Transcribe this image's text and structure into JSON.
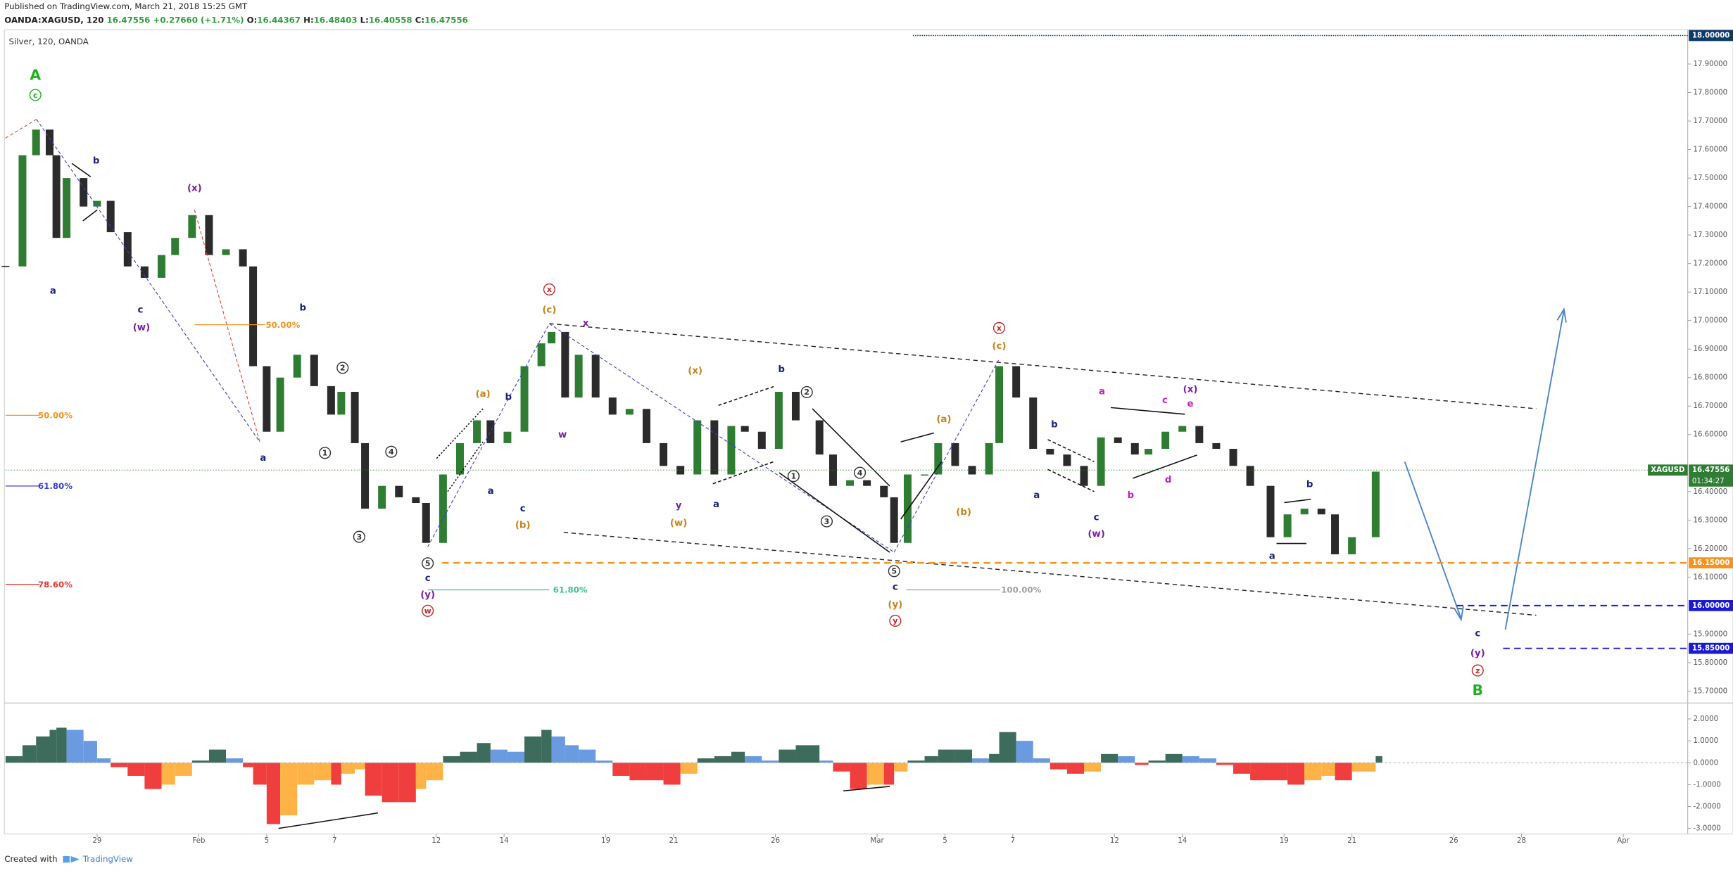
{
  "header": {
    "published": "Published on TradingView.com, March 21, 2018 15:25 GMT",
    "symbol": "OANDA:XAGUSD, 120",
    "last": "16.47556",
    "change": "+0.27660 (+1.71%)",
    "ohlc": [
      {
        "label": "O:",
        "value": "16.44367"
      },
      {
        "label": "H:",
        "value": "16.48403"
      },
      {
        "label": "L:",
        "value": "16.40558"
      },
      {
        "label": "C:",
        "value": "16.47556"
      }
    ]
  },
  "chart_data": [
    {
      "type": "candlestick",
      "title": "Silver, 120, OANDA",
      "color_up": "#2e7d32",
      "color_down": "#2b2b2b",
      "x": [
        -2.7,
        -2.2,
        -1.8,
        -1.4,
        -1.2,
        -0.9,
        -0.4,
        0,
        0.4,
        0.9,
        1.4,
        1.9,
        2.3,
        2.8,
        3.3,
        3.8,
        4.3,
        4.6,
        5,
        5.4,
        5.9,
        6.4,
        6.9,
        7.2,
        7.6,
        7.9,
        8.4,
        8.9,
        9.4,
        9.7,
        10.2,
        10.7,
        11.2,
        11.6,
        12.1,
        12.6,
        13.1,
        13.4,
        13.8,
        14.2,
        14.7,
        15.2,
        15.7,
        16.2,
        16.7,
        17.2,
        17.7,
        18.2,
        18.7,
        19.1,
        19.6,
        20.1,
        20.6,
        21.3,
        21.7,
        22.2,
        22.7,
        23.2,
        23.5,
        23.9,
        24.4,
        24.8,
        25.3,
        25.8,
        26.3,
        26.6,
        27.1,
        27.6,
        28.1,
        28.6,
        29.1,
        29.6,
        30.1,
        30.6,
        31,
        31.5,
        32,
        32.5,
        33,
        33.5,
        34,
        34.6,
        35.1,
        35.6,
        36.1,
        36.5,
        37,
        37.7
      ],
      "values": [
        17.19,
        17.58,
        17.67,
        17.58,
        17.29,
        17.5,
        17.4,
        17.42,
        17.31,
        17.19,
        17.15,
        17.23,
        17.29,
        17.37,
        17.23,
        17.25,
        17.19,
        16.84,
        16.61,
        16.8,
        16.88,
        16.77,
        16.67,
        16.75,
        16.57,
        16.34,
        16.42,
        16.38,
        16.36,
        16.22,
        16.46,
        16.57,
        16.65,
        16.57,
        16.61,
        16.84,
        16.92,
        16.96,
        16.73,
        16.88,
        16.73,
        16.67,
        16.69,
        16.57,
        16.49,
        16.46,
        16.65,
        16.46,
        16.63,
        16.61,
        16.55,
        16.75,
        16.65,
        16.53,
        16.42,
        16.44,
        16.42,
        16.38,
        16.22,
        16.46,
        16.46,
        16.57,
        16.49,
        16.46,
        16.57,
        16.84,
        16.73,
        16.55,
        16.53,
        16.49,
        16.42,
        16.59,
        16.57,
        16.53,
        16.55,
        16.61,
        16.63,
        16.57,
        16.55,
        16.49,
        16.42,
        16.24,
        16.32,
        16.34,
        16.32,
        16.18,
        16.24,
        16.47
      ],
      "xlim": [
        -2.7,
        46.9
      ],
      "xticks": [
        {
          "value": 0,
          "label": "29"
        },
        {
          "value": 3,
          "label": "Feb"
        },
        {
          "value": 5,
          "label": "5"
        },
        {
          "value": 7,
          "label": "7"
        },
        {
          "value": 10,
          "label": "12"
        },
        {
          "value": 12,
          "label": "14"
        },
        {
          "value": 15,
          "label": "19"
        },
        {
          "value": 17,
          "label": "21"
        },
        {
          "value": 20,
          "label": "26"
        },
        {
          "value": 23,
          "label": "Mar"
        },
        {
          "value": 25,
          "label": "5"
        },
        {
          "value": 27,
          "label": "7"
        },
        {
          "value": 30,
          "label": "12"
        },
        {
          "value": 32,
          "label": "14"
        },
        {
          "value": 35,
          "label": "19"
        },
        {
          "value": 37,
          "label": "21"
        },
        {
          "value": 40,
          "label": "26"
        },
        {
          "value": 42,
          "label": "28"
        },
        {
          "value": 45,
          "label": "Apr"
        }
      ],
      "ylim": [
        15.66,
        18.02
      ],
      "yticks": [
        {
          "value": 15.7,
          "label": "15.70000"
        },
        {
          "value": 15.8,
          "label": "15.80000"
        },
        {
          "value": 15.9,
          "label": "15.90000"
        },
        {
          "value": 16.1,
          "label": "16.10000"
        },
        {
          "value": 16.2,
          "label": "16.20000"
        },
        {
          "value": 16.3,
          "label": "16.30000"
        },
        {
          "value": 16.4,
          "label": "16.40000"
        },
        {
          "value": 16.6,
          "label": "16.60000"
        },
        {
          "value": 16.7,
          "label": "16.70000"
        },
        {
          "value": 16.8,
          "label": "16.80000"
        },
        {
          "value": 16.9,
          "label": "16.90000"
        },
        {
          "value": 17,
          "label": "17.00000"
        },
        {
          "value": 17.1,
          "label": "17.10000"
        },
        {
          "value": 17.2,
          "label": "17.20000"
        },
        {
          "value": 17.3,
          "label": "17.30000"
        },
        {
          "value": 17.4,
          "label": "17.40000"
        },
        {
          "value": 17.5,
          "label": "17.50000"
        },
        {
          "value": 17.6,
          "label": "17.60000"
        },
        {
          "value": 17.7,
          "label": "17.70000"
        },
        {
          "value": 17.8,
          "label": "17.80000"
        },
        {
          "value": 17.9,
          "label": "17.90000"
        }
      ],
      "grid": false,
      "levels": [
        {
          "value": 18,
          "label": "18.00000",
          "color": "#0d3b66"
        },
        {
          "value": 16.47556,
          "label": "16.47556",
          "color": "#2e7d32",
          "tag": "XAGUSD",
          "countdown": "01:34:27"
        },
        {
          "value": 16.15,
          "label": "16.15000",
          "color": "#f7931e"
        },
        {
          "value": 16,
          "label": "16.00000",
          "color": "#1a1ad6"
        },
        {
          "value": 15.85,
          "label": "15.85000",
          "color": "#1a1ad6"
        }
      ],
      "annotations": [
        {
          "text": "A",
          "color": "#22b022"
        },
        {
          "text": "c",
          "color": "#22b022",
          "circled": true
        },
        {
          "text": "b",
          "color": "#1a237e"
        },
        {
          "text": "a",
          "color": "#1a237e"
        },
        {
          "text": "c",
          "color": "#1a237e"
        },
        {
          "text": "(w)",
          "color": "#7b1fa2"
        },
        {
          "text": "(x)",
          "color": "#7b1fa2"
        },
        {
          "text": "b",
          "color": "#1a237e"
        },
        {
          "text": "2",
          "color": "#333333",
          "circled": true
        },
        {
          "text": "a",
          "color": "#1a237e"
        },
        {
          "text": "1",
          "color": "#333333",
          "circled": true
        },
        {
          "text": "4",
          "color": "#333333",
          "circled": true
        },
        {
          "text": "3",
          "color": "#333333",
          "circled": true
        },
        {
          "text": "5",
          "color": "#333333",
          "circled": true
        },
        {
          "text": "c",
          "color": "#1a237e"
        },
        {
          "text": "(y)",
          "color": "#7b1fa2"
        },
        {
          "text": "w",
          "color": "#c62828",
          "circled": true
        },
        {
          "text": "(a)",
          "color": "#c8821a"
        },
        {
          "text": "b",
          "color": "#1a237e"
        },
        {
          "text": "a",
          "color": "#1a237e"
        },
        {
          "text": "c",
          "color": "#1a237e"
        },
        {
          "text": "(b)",
          "color": "#c8821a"
        },
        {
          "text": "x",
          "color": "#c62828",
          "circled": true
        },
        {
          "text": "(c)",
          "color": "#c8821a"
        },
        {
          "text": "x",
          "color": "#7b1fa2"
        },
        {
          "text": "w",
          "color": "#7b1fa2"
        },
        {
          "text": "(x)",
          "color": "#c8821a"
        },
        {
          "text": "b",
          "color": "#1a237e"
        },
        {
          "text": "2",
          "color": "#333333",
          "circled": true
        },
        {
          "text": "y",
          "color": "#7b1fa2"
        },
        {
          "text": "(w)",
          "color": "#c8821a"
        },
        {
          "text": "a",
          "color": "#1a237e"
        },
        {
          "text": "1",
          "color": "#333333",
          "circled": true
        },
        {
          "text": "4",
          "color": "#333333",
          "circled": true
        },
        {
          "text": "3",
          "color": "#333333",
          "circled": true
        },
        {
          "text": "5",
          "color": "#333333",
          "circled": true
        },
        {
          "text": "c",
          "color": "#1a237e"
        },
        {
          "text": "(y)",
          "color": "#c8821a"
        },
        {
          "text": "y",
          "color": "#c62828",
          "circled": true
        },
        {
          "text": "(a)",
          "color": "#c8821a"
        },
        {
          "text": "(b)",
          "color": "#c8821a"
        },
        {
          "text": "x",
          "color": "#c62828",
          "circled": true
        },
        {
          "text": "(c)",
          "color": "#c8821a"
        },
        {
          "text": "a",
          "color": "#1a237e"
        },
        {
          "text": "b",
          "color": "#1a237e"
        },
        {
          "text": "c",
          "color": "#1a237e"
        },
        {
          "text": "(w)",
          "color": "#7b1fa2"
        },
        {
          "text": "a",
          "color": "#c71fc7"
        },
        {
          "text": "b",
          "color": "#c71fc7"
        },
        {
          "text": "c",
          "color": "#c71fc7"
        },
        {
          "text": "(x)",
          "color": "#7b1fa2"
        },
        {
          "text": "e",
          "color": "#c71fc7"
        },
        {
          "text": "d",
          "color": "#c71fc7"
        },
        {
          "text": "a",
          "color": "#1a237e"
        },
        {
          "text": "b",
          "color": "#1a237e"
        },
        {
          "text": "c",
          "color": "#1a237e"
        },
        {
          "text": "(y)",
          "color": "#7b1fa2"
        },
        {
          "text": "z",
          "color": "#c62828",
          "circled": true
        },
        {
          "text": "B",
          "color": "#22b022"
        },
        {
          "text": "50.00%",
          "color": "#f7931e"
        },
        {
          "text": "61.80%",
          "color": "#3b3bd6"
        },
        {
          "text": "78.60%",
          "color": "#e53935"
        },
        {
          "text": "50.00%",
          "color": "#f7931e"
        },
        {
          "text": "61.80%",
          "color": "#3dbf9a"
        },
        {
          "text": "100.00%",
          "color": "#9e9e9e"
        }
      ]
    },
    {
      "type": "bar",
      "x": [
        -2.7,
        -2.2,
        -1.8,
        -1.4,
        -1.2,
        -0.9,
        -0.4,
        0,
        0.4,
        0.9,
        1.4,
        1.9,
        2.3,
        2.8,
        3.3,
        3.8,
        4.3,
        4.6,
        5,
        5.4,
        5.9,
        6.4,
        6.9,
        7.2,
        7.6,
        7.9,
        8.4,
        8.9,
        9.4,
        9.7,
        10.2,
        10.7,
        11.2,
        11.6,
        12.1,
        12.6,
        13.1,
        13.4,
        13.8,
        14.2,
        14.7,
        15.2,
        15.7,
        16.2,
        16.7,
        17.2,
        17.7,
        18.2,
        18.7,
        19.1,
        19.6,
        20.1,
        20.6,
        21.3,
        21.7,
        22.2,
        22.7,
        23.2,
        23.5,
        23.9,
        24.4,
        24.8,
        25.3,
        25.8,
        26.3,
        26.6,
        27.1,
        27.6,
        28.1,
        28.6,
        29.1,
        29.6,
        30.1,
        30.6,
        31,
        31.5,
        32,
        32.5,
        33,
        33.5,
        34,
        34.6,
        35.1,
        35.6,
        36.1,
        36.5,
        37,
        37.7
      ],
      "values": [
        0.3,
        0.8,
        1.2,
        1.5,
        1.6,
        1.5,
        1.0,
        0.2,
        -0.2,
        -0.6,
        -1.2,
        -1.0,
        -0.6,
        0.1,
        0.6,
        0.2,
        -0.2,
        -1.0,
        -2.8,
        -2.4,
        -1.0,
        -0.8,
        -1.0,
        -0.5,
        -0.3,
        -1.5,
        -1.8,
        -1.8,
        -1.2,
        -0.8,
        0.3,
        0.5,
        0.9,
        0.6,
        0.5,
        1.2,
        1.5,
        1.2,
        0.8,
        0.6,
        0.1,
        -0.6,
        -0.8,
        -0.8,
        -1.0,
        -0.5,
        0.2,
        0.3,
        0.5,
        0.3,
        0.1,
        0.6,
        0.8,
        0.1,
        -0.4,
        -1.2,
        -1.0,
        -1.0,
        -0.4,
        0.1,
        0.3,
        0.6,
        0.6,
        0.2,
        0.4,
        1.4,
        1.0,
        0.2,
        -0.3,
        -0.5,
        -0.4,
        0.4,
        0.3,
        -0.1,
        0.1,
        0.4,
        0.3,
        0.2,
        -0.1,
        -0.5,
        -0.8,
        -0.8,
        -1.0,
        -0.8,
        -0.6,
        -0.8,
        -0.4,
        0.3
      ],
      "colors": {
        "pos_rising": "#3d6b5c",
        "pos_falling": "#6a9be0",
        "neg_falling": "#f03e3e",
        "neg_rising": "#ffb347"
      },
      "xlim": [
        -2.7,
        46.9
      ],
      "ylim": [
        -3.25,
        2.7
      ],
      "yticks": [
        {
          "value": 2,
          "label": "2.0000"
        },
        {
          "value": 1,
          "label": "1.0000"
        },
        {
          "value": 0,
          "label": "0.0000"
        },
        {
          "value": -1,
          "label": "-1.0000"
        },
        {
          "value": -2,
          "label": "-2.0000"
        },
        {
          "value": -3,
          "label": "-3.0000"
        }
      ]
    }
  ],
  "footer": {
    "created": "Created with",
    "brand": "TradingView"
  }
}
